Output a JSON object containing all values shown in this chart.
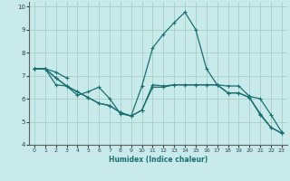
{
  "xlabel": "Humidex (Indice chaleur)",
  "xlim": [
    -0.5,
    23.5
  ],
  "ylim": [
    4,
    10.2
  ],
  "yticks": [
    4,
    5,
    6,
    7,
    8,
    9,
    10
  ],
  "xticks": [
    0,
    1,
    2,
    3,
    4,
    5,
    6,
    7,
    8,
    9,
    10,
    11,
    12,
    13,
    14,
    15,
    16,
    17,
    18,
    19,
    20,
    21,
    22,
    23
  ],
  "bg_color": "#c8eaea",
  "grid_color": "#a0c8c0",
  "line_color": "#1a7070",
  "lines": [
    {
      "x": [
        0,
        1,
        2,
        3
      ],
      "y": [
        7.3,
        7.3,
        7.15,
        6.9
      ]
    },
    {
      "x": [
        0,
        1,
        2,
        3,
        4,
        5,
        6,
        7,
        8,
        9,
        10,
        11,
        12,
        13,
        14,
        15,
        16,
        17,
        18,
        19,
        20,
        21,
        22,
        23
      ],
      "y": [
        7.3,
        7.3,
        6.6,
        6.55,
        6.15,
        6.3,
        6.5,
        6.0,
        5.35,
        5.25,
        5.5,
        6.6,
        6.55,
        6.6,
        6.6,
        6.6,
        6.6,
        6.6,
        6.25,
        6.25,
        6.05,
        5.35,
        4.75,
        4.5
      ]
    },
    {
      "x": [
        0,
        1,
        2,
        3,
        4,
        5,
        6,
        7,
        8,
        9,
        10,
        11,
        12,
        13,
        14,
        15,
        16,
        17,
        18,
        19,
        20,
        21,
        22,
        23
      ],
      "y": [
        7.3,
        7.3,
        6.9,
        6.55,
        6.3,
        6.05,
        5.8,
        5.7,
        5.4,
        5.25,
        6.55,
        8.2,
        8.8,
        9.3,
        9.75,
        9.0,
        7.3,
        6.6,
        6.55,
        6.55,
        6.1,
        6.0,
        5.3,
        4.55
      ]
    },
    {
      "x": [
        0,
        1,
        2,
        3,
        4,
        5,
        6,
        7,
        8,
        9,
        10,
        11,
        12,
        13,
        14,
        15,
        16,
        17,
        18,
        19,
        20,
        21,
        22,
        23
      ],
      "y": [
        7.3,
        7.3,
        6.9,
        6.55,
        6.3,
        6.05,
        5.8,
        5.7,
        5.4,
        5.25,
        5.5,
        6.5,
        6.5,
        6.6,
        6.6,
        6.6,
        6.6,
        6.6,
        6.25,
        6.25,
        6.05,
        5.3,
        4.75,
        4.5
      ]
    }
  ]
}
